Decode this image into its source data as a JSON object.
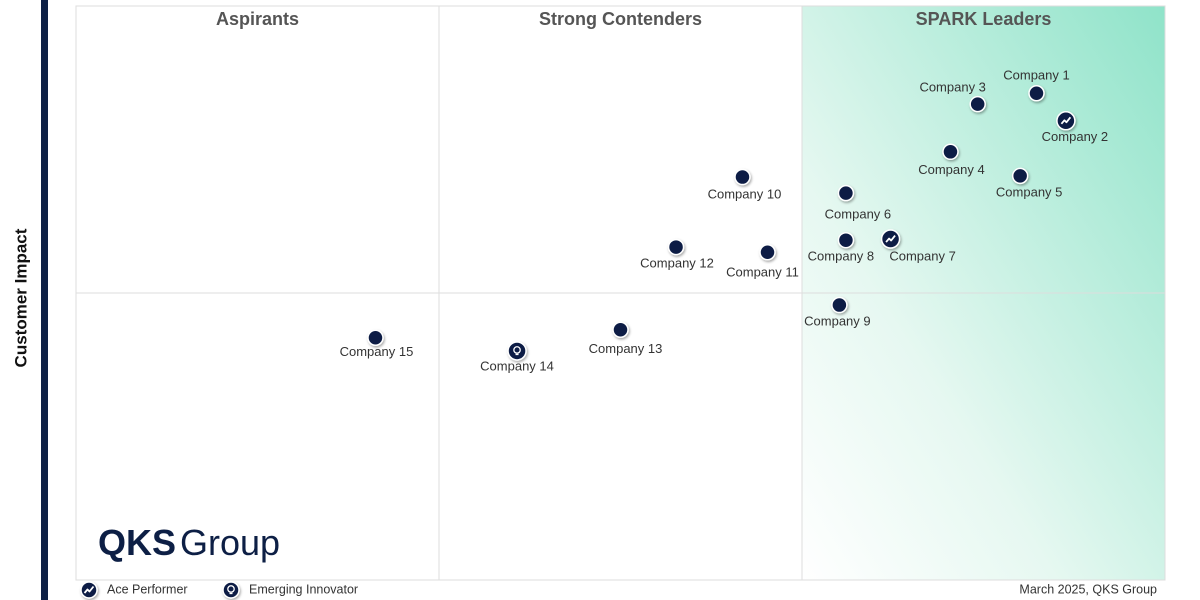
{
  "chart_data": {
    "type": "scatter",
    "y_label": "Customer Impact",
    "quadrant_labels": [
      "Aspirants",
      "Strong Contenders",
      "SPARK Leaders"
    ],
    "xlim": [
      0,
      100
    ],
    "ylim": [
      0,
      100
    ],
    "color": "#0d1f45",
    "labels": [
      "Company 1",
      "Company 2",
      "Company 3",
      "Company 4",
      "Company 5",
      "Company 6",
      "Company 7",
      "Company 8",
      "Company 9",
      "Company 10",
      "Company 11",
      "Company 12",
      "Company 13",
      "Company 14",
      "Company 15"
    ],
    "x": [
      88.2,
      90.9,
      82.8,
      80.3,
      86.7,
      70.7,
      74.8,
      70.7,
      70.1,
      61.2,
      63.5,
      55.1,
      50.0,
      40.5,
      27.5
    ],
    "y": [
      84.8,
      80.0,
      82.9,
      74.6,
      70.4,
      67.4,
      59.4,
      59.2,
      47.9,
      70.2,
      57.1,
      58.0,
      43.6,
      39.9,
      42.2
    ],
    "badges": [
      null,
      "ace",
      null,
      null,
      null,
      null,
      "ace",
      null,
      null,
      null,
      null,
      null,
      null,
      "innovator",
      null
    ],
    "legend": [
      {
        "key": "ace",
        "label": "Ace Performer"
      },
      {
        "key": "innovator",
        "label": "Emerging Innovator"
      }
    ],
    "logo": [
      "QKS",
      "Group"
    ],
    "footnote": "March 2025, QKS Group"
  }
}
